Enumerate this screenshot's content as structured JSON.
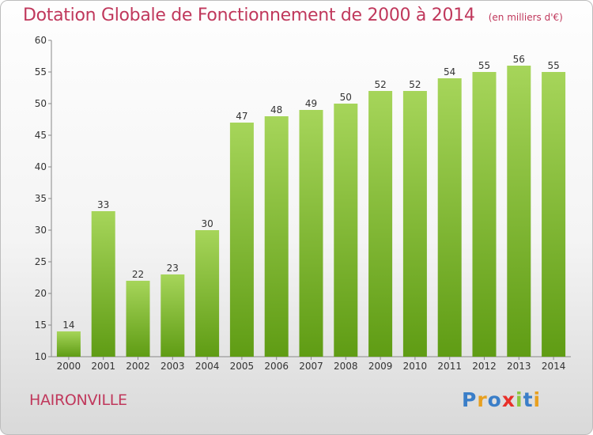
{
  "title": "Dotation Globale de Fonctionnement de 2000 à 2014",
  "unit_note": "(en milliers d'€)",
  "commune": "HAIRONVILLE",
  "logo": {
    "text": "Proxiti",
    "colors": [
      "#3a7ec8",
      "#e8a020",
      "#3a7ec8",
      "#e8302a",
      "#8cc63e",
      "#3a7ec8",
      "#e8a020"
    ]
  },
  "colors": {
    "title": "#c0385c",
    "bar_top": "#a6d55a",
    "bar_bottom": "#5f9c14",
    "axis": "#888888"
  },
  "chart_data": {
    "type": "bar",
    "categories": [
      "2000",
      "2001",
      "2002",
      "2003",
      "2004",
      "2005",
      "2006",
      "2007",
      "2008",
      "2009",
      "2010",
      "2011",
      "2012",
      "2013",
      "2014"
    ],
    "values": [
      14,
      33,
      22,
      23,
      30,
      47,
      48,
      49,
      50,
      52,
      52,
      54,
      55,
      56,
      55
    ],
    "title": "Dotation Globale de Fonctionnement de 2000 à 2014",
    "xlabel": "",
    "ylabel": "",
    "ylim": [
      10,
      60
    ],
    "yticks": [
      10,
      15,
      20,
      25,
      30,
      35,
      40,
      45,
      50,
      55,
      60
    ],
    "grid": false,
    "data_labels": true
  }
}
